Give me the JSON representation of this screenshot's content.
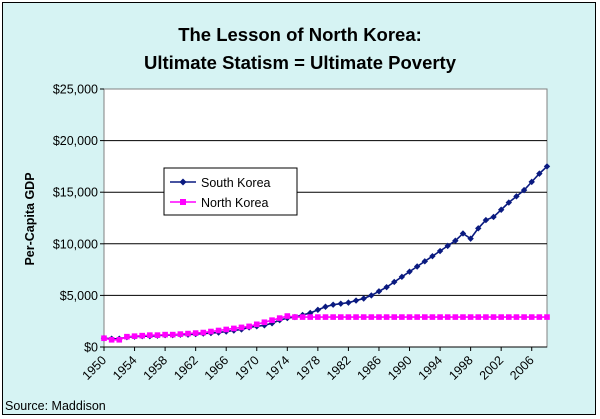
{
  "chart_data": {
    "type": "line",
    "title": [
      "The Lesson of North Korea:",
      "Ultimate Statism = Ultimate Poverty"
    ],
    "ylabel": "Per-Capita GDP",
    "xlabel": "",
    "source": "Source: Maddison",
    "x_tick_labels": [
      "1950",
      "1954",
      "1958",
      "1962",
      "1966",
      "1970",
      "1974",
      "1978",
      "1982",
      "1986",
      "1990",
      "1994",
      "1998",
      "2002",
      "2006"
    ],
    "y_tick_labels": [
      "$0",
      "$5,000",
      "$10,000",
      "$15,000",
      "$20,000",
      "$25,000"
    ],
    "ylim": [
      0,
      25000
    ],
    "xlim": [
      1950,
      2008
    ],
    "legend_position": "center-left",
    "grid": "horizontal",
    "background_color": "#d6f3f3",
    "plot_background_color": "#ffffff",
    "x": [
      1950,
      1951,
      1952,
      1953,
      1954,
      1955,
      1956,
      1957,
      1958,
      1959,
      1960,
      1961,
      1962,
      1963,
      1964,
      1965,
      1966,
      1967,
      1968,
      1969,
      1970,
      1971,
      1972,
      1973,
      1974,
      1975,
      1976,
      1977,
      1978,
      1979,
      1980,
      1981,
      1982,
      1983,
      1984,
      1985,
      1986,
      1987,
      1988,
      1989,
      1990,
      1991,
      1992,
      1993,
      1994,
      1995,
      1996,
      1997,
      1998,
      1999,
      2000,
      2001,
      2002,
      2003,
      2004,
      2005,
      2006,
      2007,
      2008
    ],
    "series": [
      {
        "name": "South Korea",
        "color": "#0a1a80",
        "marker": "diamond",
        "values": [
          850,
          800,
          800,
          950,
          1000,
          1050,
          1050,
          1100,
          1150,
          1150,
          1200,
          1200,
          1250,
          1300,
          1350,
          1400,
          1500,
          1600,
          1700,
          1900,
          2000,
          2100,
          2300,
          2600,
          2800,
          2900,
          3100,
          3300,
          3600,
          3900,
          4100,
          4200,
          4300,
          4500,
          4700,
          5000,
          5400,
          5800,
          6300,
          6800,
          7300,
          7800,
          8300,
          8800,
          9300,
          9800,
          10300,
          11000,
          10500,
          11500,
          12300,
          12600,
          13300,
          14000,
          14600,
          15200,
          16000,
          16800,
          17500
        ]
      },
      {
        "name": "North Korea",
        "color": "#ff00ff",
        "marker": "square",
        "values": [
          850,
          700,
          700,
          1000,
          1050,
          1100,
          1150,
          1150,
          1200,
          1200,
          1250,
          1300,
          1350,
          1400,
          1500,
          1600,
          1700,
          1800,
          1900,
          2000,
          2200,
          2400,
          2600,
          2800,
          3000,
          2900,
          2900,
          2900,
          2900,
          2900,
          2900,
          2900,
          2900,
          2900,
          2900,
          2900,
          2900,
          2900,
          2900,
          2900,
          2900,
          2900,
          2900,
          2900,
          2900,
          2900,
          2900,
          2900,
          2900,
          2900,
          2900,
          2900,
          2900,
          2900,
          2900,
          2900,
          2900,
          2900,
          2900
        ]
      }
    ]
  }
}
